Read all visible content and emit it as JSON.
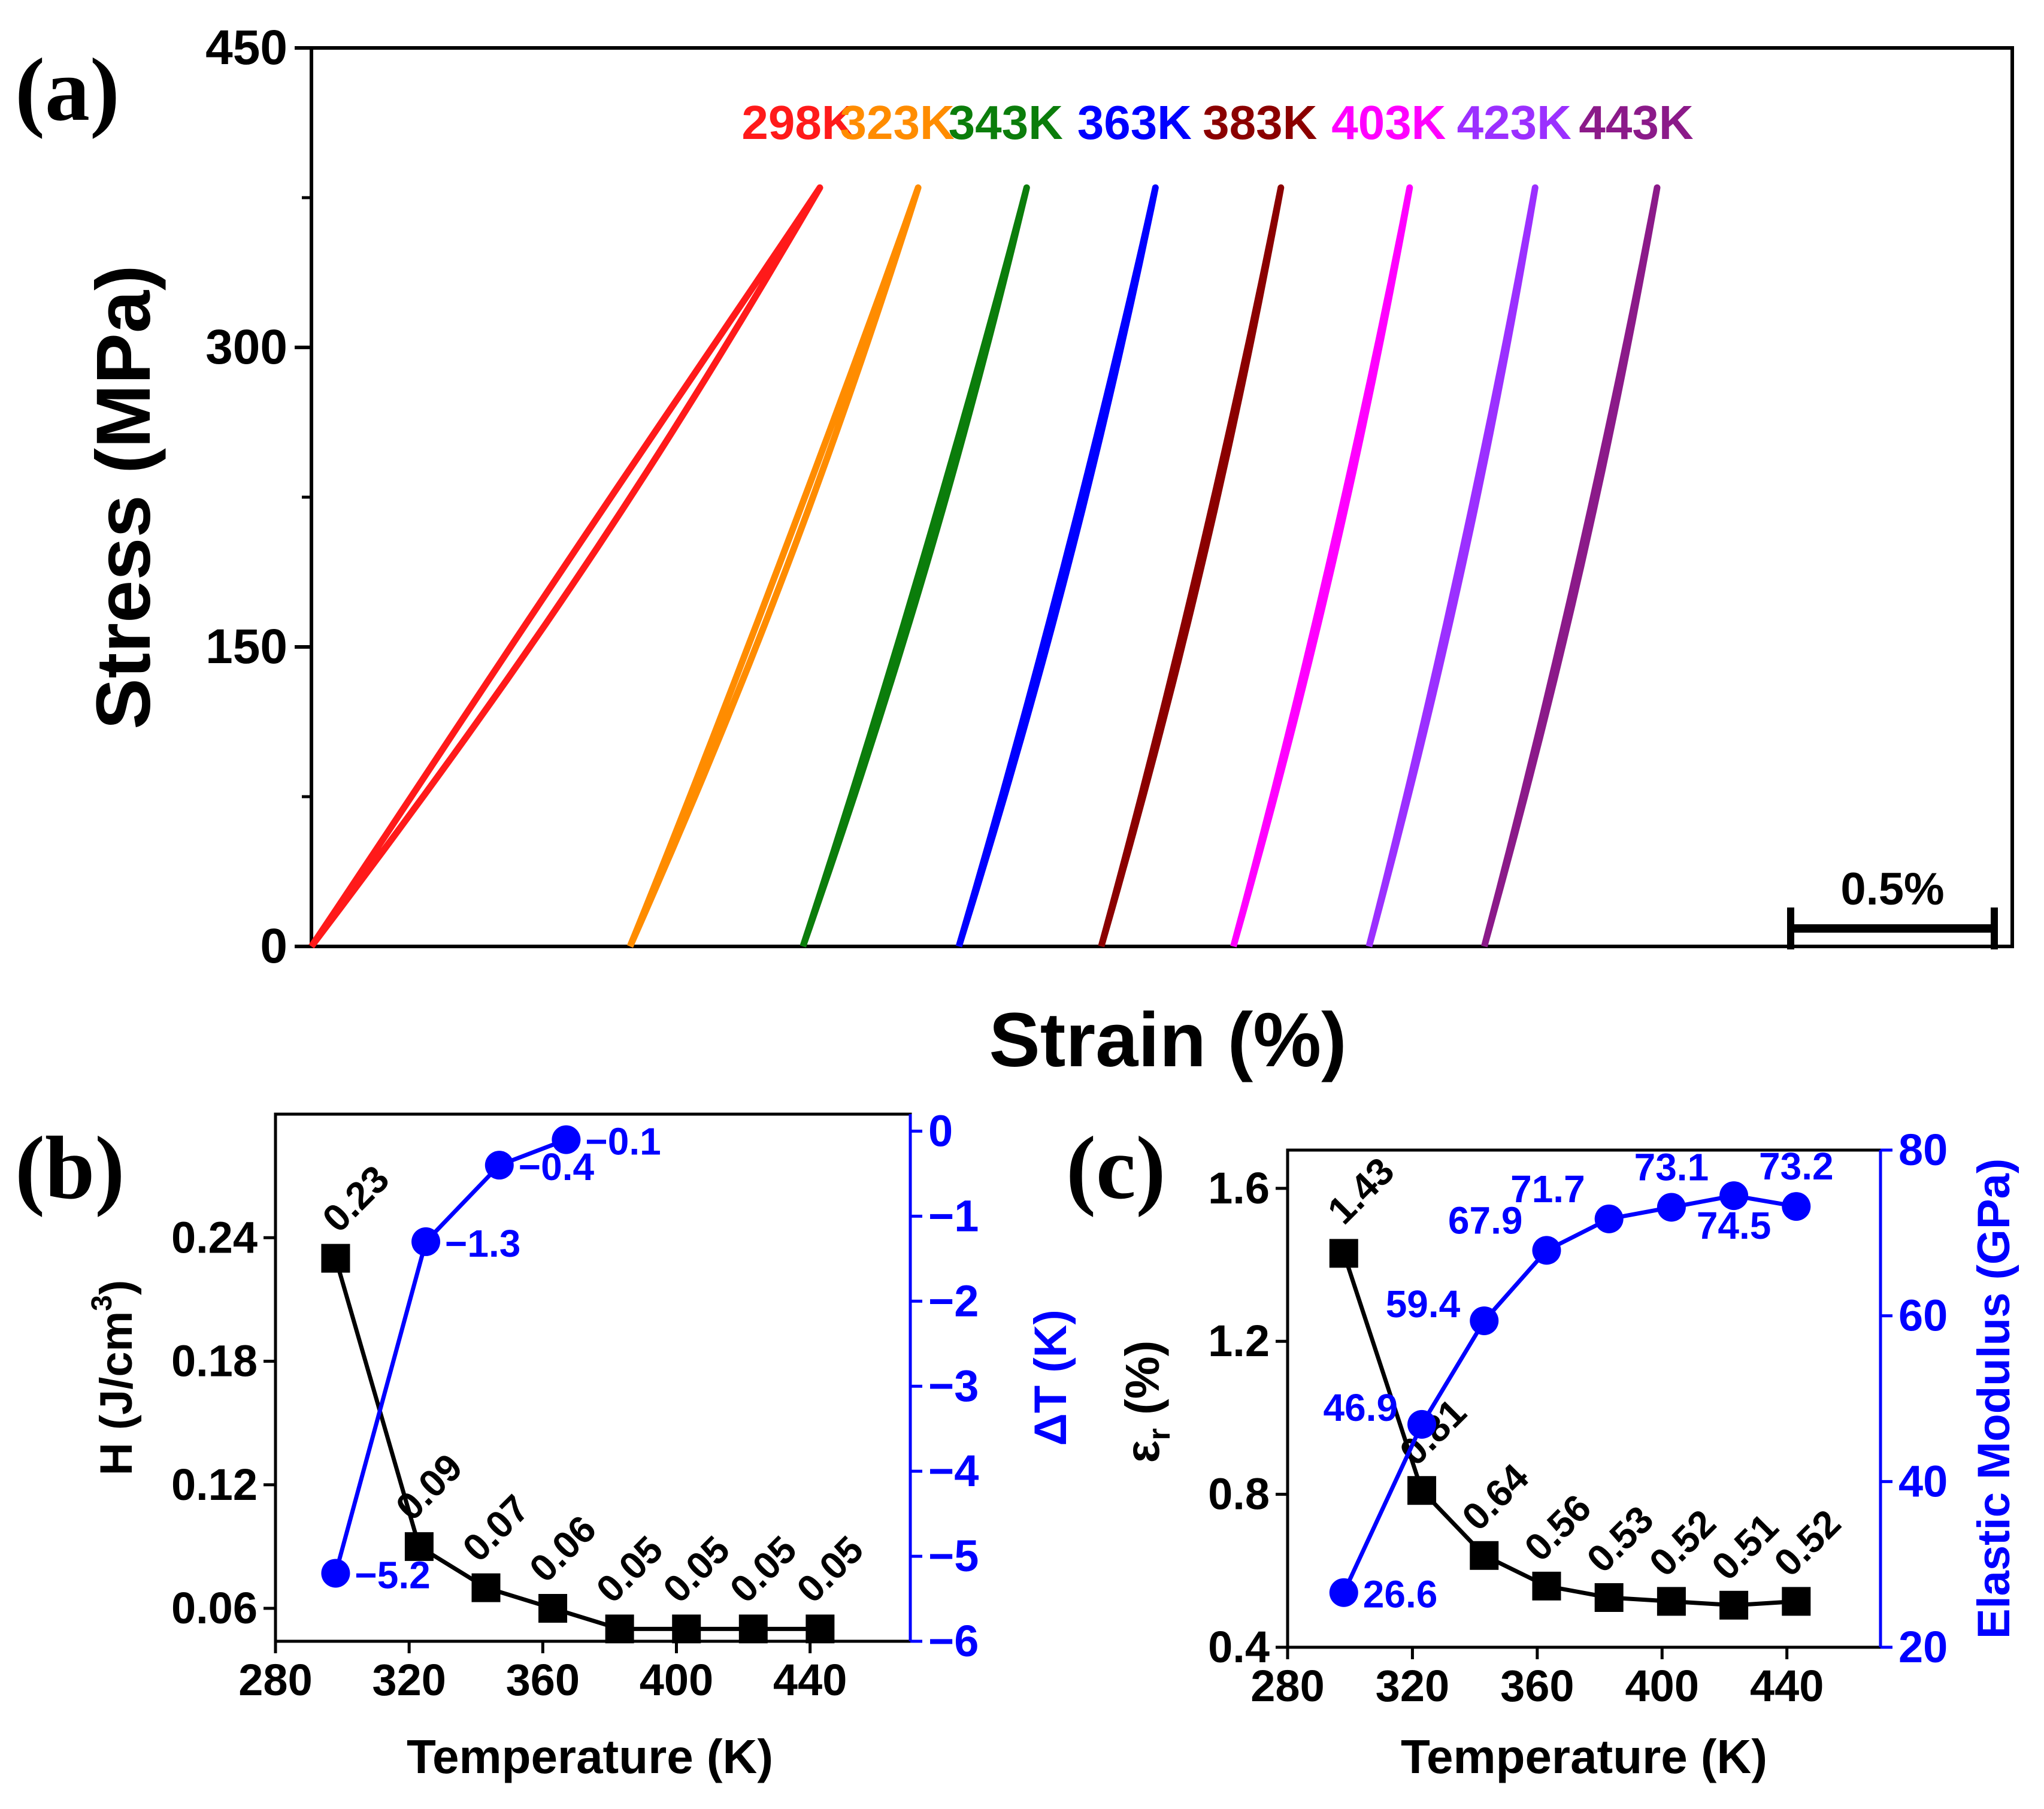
{
  "chart_data": [
    {
      "panel": "(a)",
      "type": "line",
      "xlabel": "Strain (%)",
      "ylabel": "Stress (MPa)",
      "ylim": [
        0,
        450
      ],
      "yticks": [
        0,
        150,
        300,
        450
      ],
      "max_stress": 380,
      "scale_bar_label": "0.5%",
      "scale_bar_strain": 0.5,
      "series": [
        {
          "name": "298K",
          "color": "#ff1a1a",
          "strain_start": 0.0,
          "strain_end": 1.5,
          "loop_width": 0.06
        },
        {
          "name": "323K",
          "color": "#ff8c00",
          "strain_start": 0.94,
          "strain_end": 1.79,
          "loop_width": 0.025
        },
        {
          "name": "343K",
          "color": "#0b7d0b",
          "strain_start": 1.45,
          "strain_end": 2.11,
          "loop_width": 0.015
        },
        {
          "name": "363K",
          "color": "#0000ff",
          "strain_start": 1.91,
          "strain_end": 2.49,
          "loop_width": 0.012
        },
        {
          "name": "383K",
          "color": "#8b0000",
          "strain_start": 2.33,
          "strain_end": 2.86,
          "loop_width": 0.01
        },
        {
          "name": "403K",
          "color": "#ff00ff",
          "strain_start": 2.72,
          "strain_end": 3.24,
          "loop_width": 0.01
        },
        {
          "name": "423K",
          "color": "#9b30ff",
          "strain_start": 3.12,
          "strain_end": 3.61,
          "loop_width": 0.01
        },
        {
          "name": "443K",
          "color": "#8b1a89",
          "strain_start": 3.46,
          "strain_end": 3.97,
          "loop_width": 0.01
        }
      ]
    },
    {
      "panel": "(b)",
      "type": "line",
      "xlabel": "Temperature (K)",
      "ylabel_left": "H (J/cm",
      "ylabel_left_sup": "3",
      "ylabel_right": "ΔT (K)",
      "xlim": [
        280,
        470
      ],
      "xticks": [
        280,
        320,
        360,
        400,
        440
      ],
      "ylim_left": [
        0.044,
        0.3
      ],
      "yticks_left": [
        "0.06",
        "0.12",
        "0.18",
        "0.24"
      ],
      "ylim_right": [
        -6,
        0.2
      ],
      "yticks_right": [
        "0",
        "−1",
        "−2",
        "−3",
        "−4",
        "−5",
        "−6"
      ],
      "series": [
        {
          "name": "H",
          "color": "#000000",
          "marker": "square",
          "x": [
            298,
            323,
            343,
            363,
            383,
            403,
            423,
            443
          ],
          "y": [
            0.23,
            0.09,
            0.07,
            0.06,
            0.05,
            0.05,
            0.05,
            0.05
          ],
          "labels": [
            "0.23",
            "0.09",
            "0.07",
            "0.06",
            "0.05",
            "0.05",
            "0.05",
            "0.05"
          ]
        },
        {
          "name": "ΔT",
          "color": "#0000ff",
          "marker": "circle",
          "x": [
            298,
            325,
            347,
            367
          ],
          "y": [
            -5.2,
            -1.3,
            -0.4,
            -0.1
          ],
          "labels": [
            "−5.2",
            "−1.3",
            "−0.4",
            "−0.1"
          ]
        }
      ]
    },
    {
      "panel": "(c)",
      "type": "line",
      "xlabel": "Temperature (K)",
      "ylabel_left": "ε",
      "ylabel_left_sub": "r",
      "ylabel_left_unit": " (%)",
      "ylabel_right": "Elastic Modulus (GPa)",
      "xlim": [
        280,
        470
      ],
      "xticks": [
        280,
        320,
        360,
        400,
        440
      ],
      "ylim_left": [
        0.4,
        1.7
      ],
      "yticks_left": [
        "0.4",
        "0.8",
        "1.2",
        "1.6"
      ],
      "ylim_right": [
        20,
        80
      ],
      "yticks_right": [
        "20",
        "40",
        "60",
        "80"
      ],
      "series": [
        {
          "name": "εr",
          "color": "#000000",
          "marker": "square",
          "x": [
            298,
            323,
            343,
            363,
            383,
            403,
            423,
            443
          ],
          "y": [
            1.43,
            0.81,
            0.64,
            0.56,
            0.53,
            0.52,
            0.51,
            0.52
          ],
          "labels": [
            "1.43",
            "0.81",
            "0.64",
            "0.56",
            "0.53",
            "0.52",
            "0.51",
            "0.52"
          ]
        },
        {
          "name": "Elastic Modulus",
          "color": "#0000ff",
          "marker": "circle",
          "x": [
            298,
            323,
            343,
            363,
            383,
            403,
            423,
            443
          ],
          "y": [
            26.6,
            46.9,
            59.4,
            67.9,
            71.7,
            73.1,
            74.5,
            73.2
          ],
          "labels": [
            "26.6",
            "46.9",
            "59.4",
            "67.9",
            "71.7",
            "73.1",
            "74.5",
            "73.2"
          ]
        }
      ]
    }
  ]
}
